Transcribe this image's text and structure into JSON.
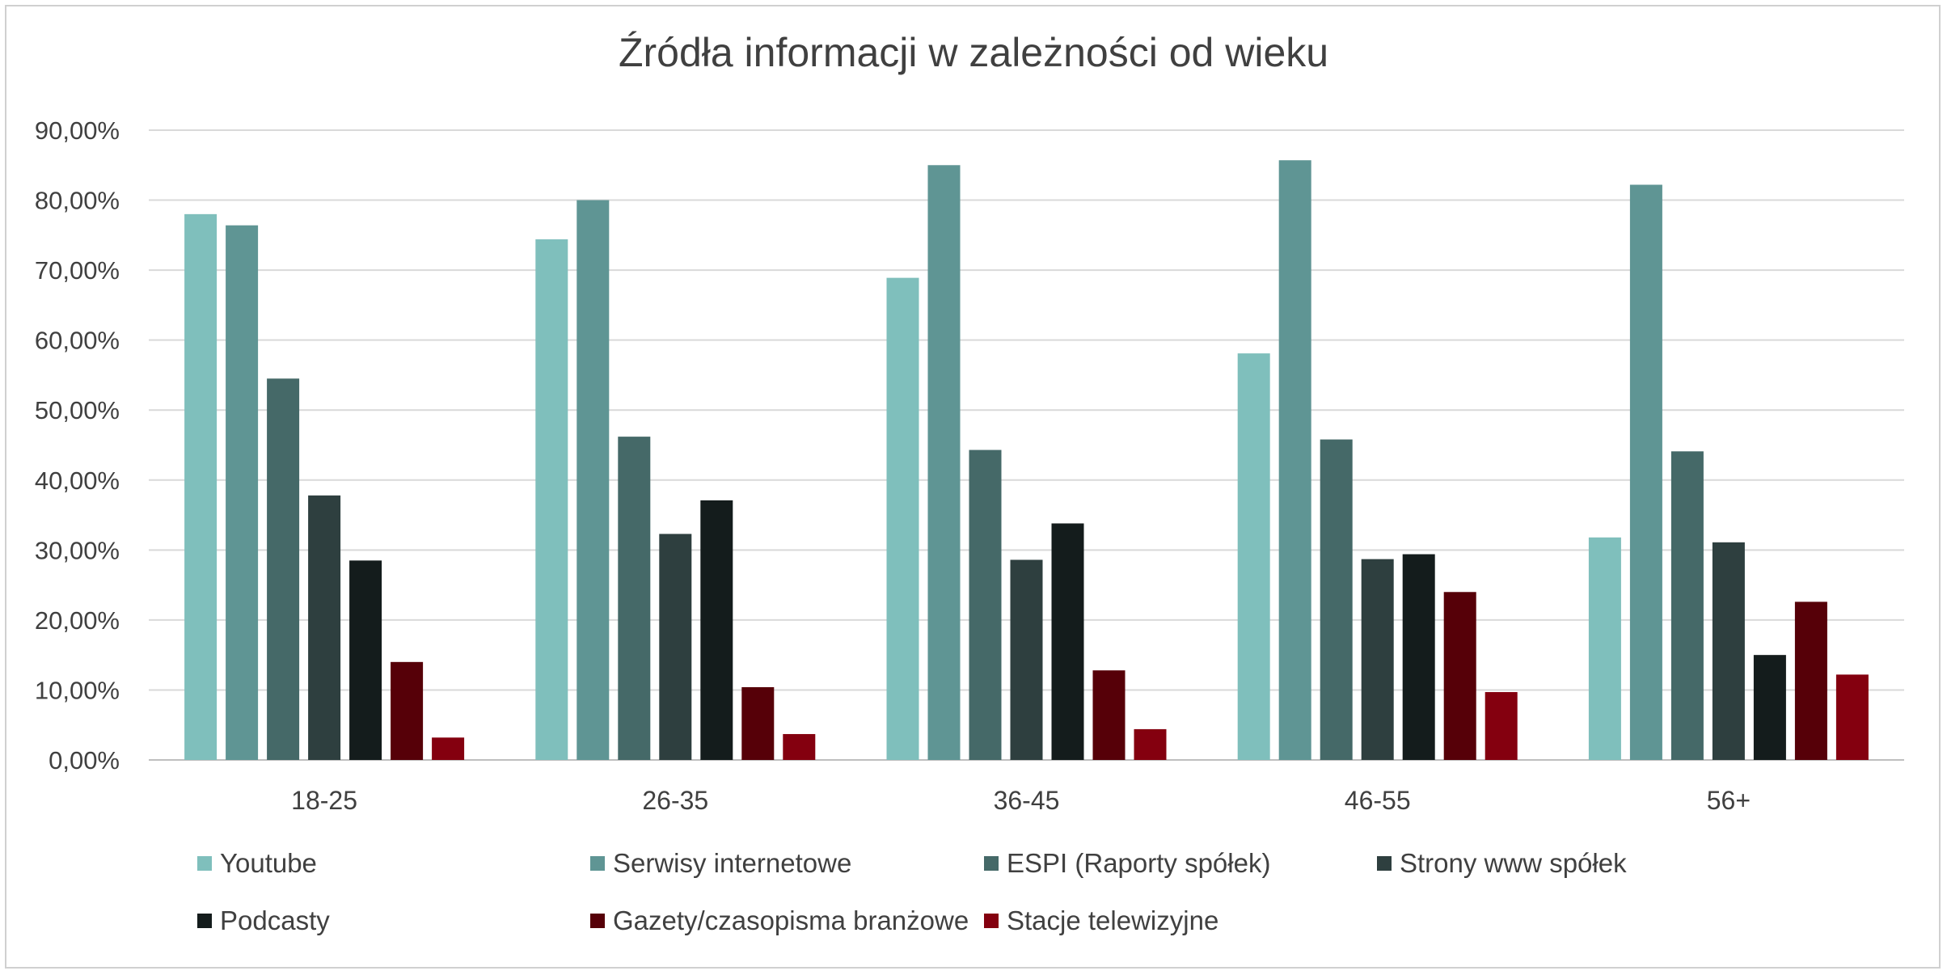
{
  "chart_data": {
    "type": "bar",
    "title": "Źródła informacji w zależności od wieku",
    "xlabel": "",
    "ylabel": "",
    "ylim": [
      0,
      90
    ],
    "y_ticks": [
      "0,00%",
      "10,00%",
      "20,00%",
      "30,00%",
      "40,00%",
      "50,00%",
      "60,00%",
      "70,00%",
      "80,00%",
      "90,00%"
    ],
    "grid": true,
    "legend_position": "bottom",
    "categories": [
      "18-25",
      "26-35",
      "36-45",
      "46-55",
      "56+"
    ],
    "series": [
      {
        "name": "Youtube",
        "color": "#7fbfbc",
        "values": [
          78.0,
          74.4,
          68.9,
          58.1,
          31.8
        ]
      },
      {
        "name": "Serwisy internetowe",
        "color": "#5f9594",
        "values": [
          76.4,
          80.0,
          85.0,
          85.7,
          82.2
        ]
      },
      {
        "name": "ESPI (Raporty spółek)",
        "color": "#456968",
        "values": [
          54.5,
          46.2,
          44.3,
          45.8,
          44.1
        ]
      },
      {
        "name": "Strony www spółek",
        "color": "#2e3f3f",
        "values": [
          37.8,
          32.3,
          28.6,
          28.7,
          31.1
        ]
      },
      {
        "name": "Podcasty",
        "color": "#141c1c",
        "values": [
          28.5,
          37.1,
          33.8,
          29.4,
          15.0
        ]
      },
      {
        "name": "Gazety/czasopisma branżowe",
        "color": "#560008",
        "values": [
          14.0,
          10.4,
          12.8,
          24.0,
          22.6
        ]
      },
      {
        "name": "Stacje telewizyjne",
        "color": "#84000f",
        "values": [
          3.2,
          3.7,
          4.4,
          9.7,
          12.2
        ]
      }
    ]
  }
}
